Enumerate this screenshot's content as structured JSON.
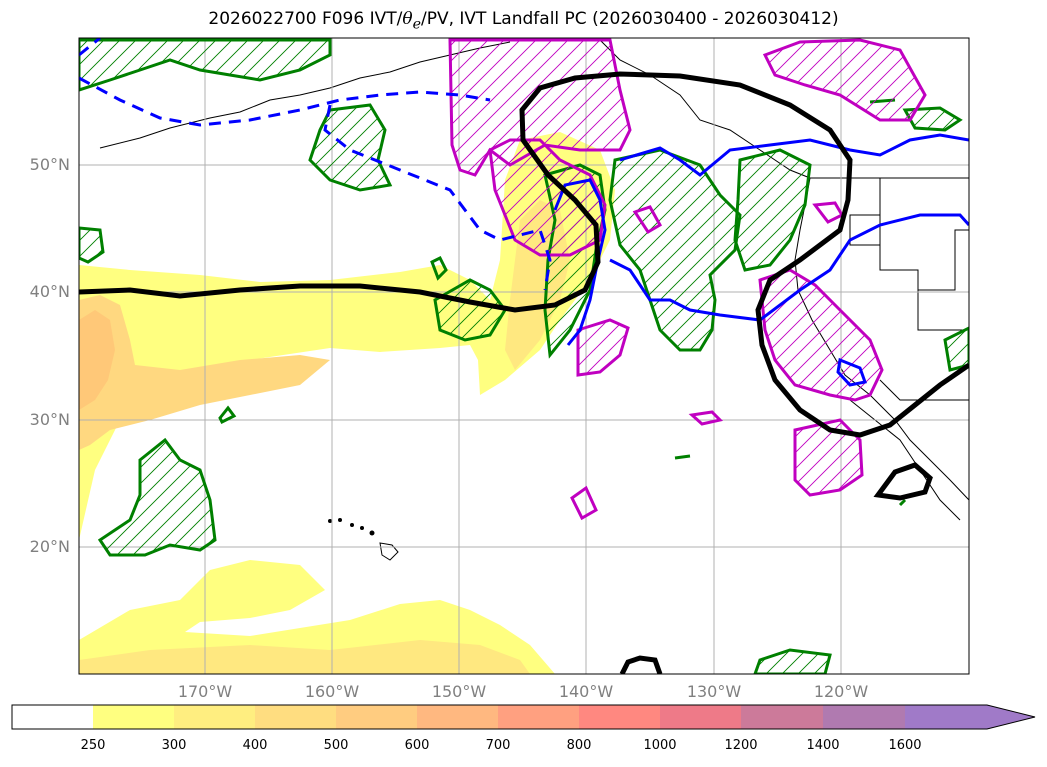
{
  "title": {
    "prefix": "2026022700 F096 IVT/",
    "theta": "θ",
    "theta_sub": "e",
    "suffix": "/PV, IVT Landfall PC (2026030400 - 2026030412)"
  },
  "lat_labels": [
    "50°N",
    "40°N",
    "30°N",
    "20°N"
  ],
  "lon_labels": [
    "170°W",
    "160°W",
    "150°W",
    "140°W",
    "130°W",
    "120°W"
  ],
  "colorbar": {
    "ticks": [
      "250",
      "300",
      "400",
      "500",
      "600",
      "700",
      "800",
      "1000",
      "1200",
      "1400",
      "1600"
    ],
    "colors": [
      "#ffffff",
      "#ffff80",
      "#ffee80",
      "#ffdd80",
      "#ffcc80",
      "#ffb880",
      "#ffa080",
      "#ff8880",
      "#ee7a88",
      "#cc7a9a",
      "#b07ab0",
      "#a07ac8"
    ]
  },
  "map_extent": {
    "lon_min": -180,
    "lon_max": -110,
    "lat_min": 10,
    "lat_max": 60
  },
  "legend_colors": {
    "ivt_fill_low": "#ffff80",
    "ivt_fill_mid": "#ffd880",
    "pv_contour": "#008000",
    "theta_e_contour_magenta": "#c000c0",
    "theta_e_contour_blue": "#0000ff",
    "landfall_pc": "#000000"
  }
}
